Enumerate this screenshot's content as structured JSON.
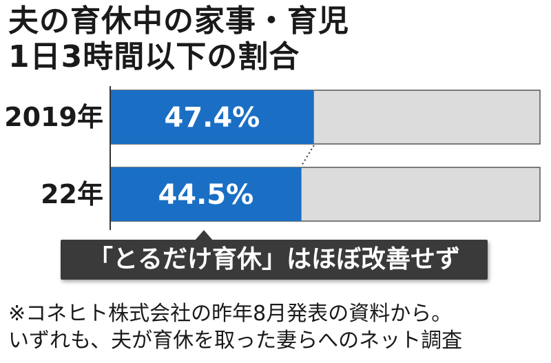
{
  "title": {
    "line1": "夫の育休中の家事・育児",
    "line2": "1日3時間以下の割合"
  },
  "chart_data": {
    "type": "bar",
    "orientation": "horizontal",
    "stacked_to_100": true,
    "categories": [
      "2019年",
      "22年"
    ],
    "values": [
      47.4,
      44.5
    ],
    "value_labels": [
      "47.4%",
      "44.5%"
    ],
    "xlim": [
      0,
      100
    ],
    "unit": "%",
    "colors": {
      "value": "#1a6fc4",
      "remainder": "#dcdcdc"
    }
  },
  "callout": {
    "text": "「とるだけ育休」はほぼ改善せず"
  },
  "notes": {
    "line1": "※コネヒト株式会社の昨年8月発表の資料から。",
    "line2": "いずれも、夫が育休を取った妻らへのネット調査"
  }
}
